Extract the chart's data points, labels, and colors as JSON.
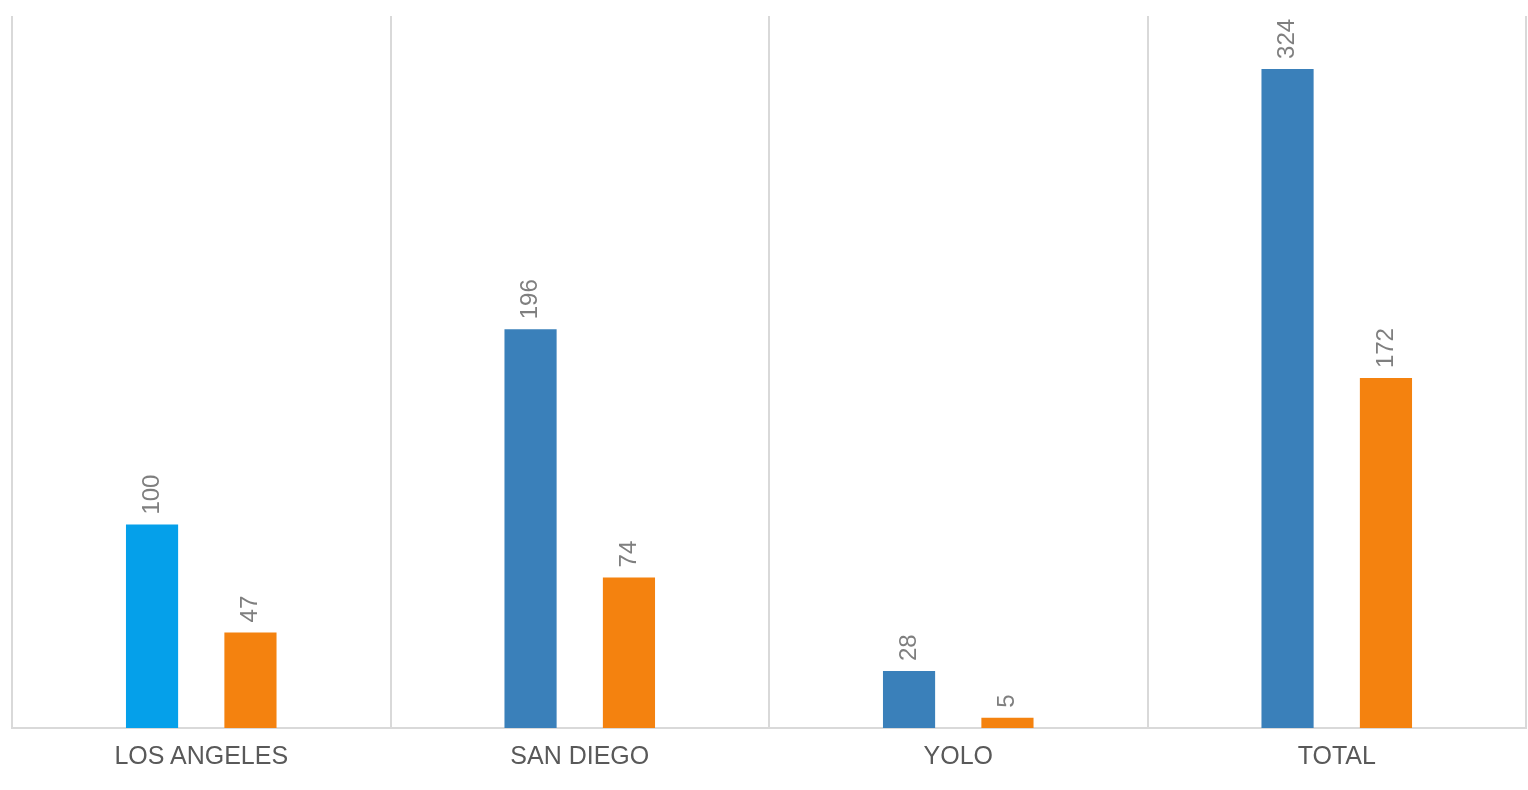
{
  "chart_data": {
    "type": "bar",
    "categories": [
      "LOS ANGELES",
      "SAN DIEGO",
      "YOLO",
      "TOTAL"
    ],
    "series": [
      {
        "colors": [
          "#05a0ea",
          "#3a80ba",
          "#3a80ba",
          "#3a80ba"
        ],
        "values": [
          100,
          196,
          28,
          324
        ]
      },
      {
        "color": "#f4820f",
        "values": [
          47,
          74,
          5,
          172
        ]
      }
    ],
    "data_labels": true,
    "grid": "x",
    "legend": false
  }
}
